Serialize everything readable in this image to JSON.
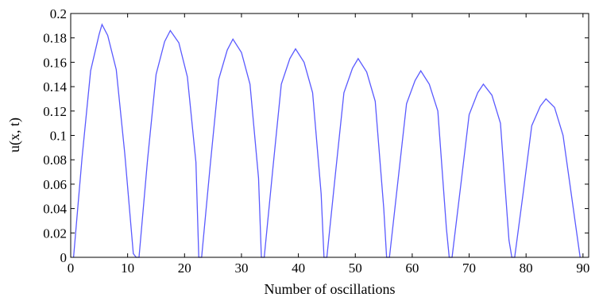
{
  "chart_data": {
    "type": "line",
    "title": "",
    "xlabel": "Number of oscillations",
    "ylabel": "u(x, t)",
    "xlim": [
      0,
      91
    ],
    "ylim": [
      0,
      0.2
    ],
    "xticks": [
      0,
      10,
      20,
      30,
      40,
      50,
      60,
      70,
      80,
      90
    ],
    "xtick_labels": [
      "0",
      "10",
      "20",
      "30",
      "40",
      "50",
      "60",
      "70",
      "80",
      "90"
    ],
    "yticks": [
      0,
      0.02,
      0.04,
      0.06,
      0.08,
      0.1,
      0.12,
      0.14,
      0.16,
      0.18,
      0.2
    ],
    "ytick_labels": [
      "0",
      "0.02",
      "0.04",
      "0.06",
      "0.08",
      "0.1",
      "0.12",
      "0.14",
      "0.16",
      "0.18",
      "0.2"
    ],
    "grid": false,
    "legend": "none",
    "line_color": "#5a5aff",
    "series": [
      {
        "x": [
          0.5,
          2,
          3.5,
          5,
          5.5,
          6.5,
          8,
          9.5,
          11,
          11.5,
          12,
          13.5,
          15,
          16.5,
          17.5,
          19,
          20.5,
          22,
          22.5,
          23,
          24.5,
          26,
          27.5,
          28.5,
          30,
          31.5,
          33,
          33.5,
          34,
          35.5,
          37,
          38.5,
          39.5,
          41,
          42.5,
          44,
          44.5,
          45,
          46.5,
          48,
          49.5,
          50.5,
          52,
          53.5,
          55,
          55.5,
          56,
          57.5,
          59,
          60.5,
          61.5,
          63,
          64.5,
          66,
          66.5,
          67,
          68.5,
          70,
          71.5,
          72.5,
          74,
          75.5,
          77,
          77.5,
          78,
          79.5,
          81,
          82.5,
          83.5,
          85,
          86.5,
          88,
          89.5
        ],
        "y": [
          0,
          0.082,
          0.153,
          0.183,
          0.191,
          0.182,
          0.154,
          0.085,
          0.003,
          0,
          0,
          0.08,
          0.15,
          0.177,
          0.186,
          0.176,
          0.148,
          0.078,
          0,
          0,
          0.075,
          0.146,
          0.17,
          0.179,
          0.168,
          0.142,
          0.065,
          0,
          0,
          0.072,
          0.142,
          0.163,
          0.171,
          0.16,
          0.135,
          0.052,
          0,
          0,
          0.068,
          0.135,
          0.155,
          0.163,
          0.152,
          0.128,
          0.04,
          0,
          0,
          0.063,
          0.126,
          0.145,
          0.153,
          0.142,
          0.12,
          0.024,
          0,
          0,
          0.058,
          0.117,
          0.135,
          0.142,
          0.133,
          0.11,
          0.014,
          0,
          0,
          0.053,
          0.108,
          0.124,
          0.13,
          0.123,
          0.1,
          0.05,
          0
        ]
      }
    ]
  }
}
